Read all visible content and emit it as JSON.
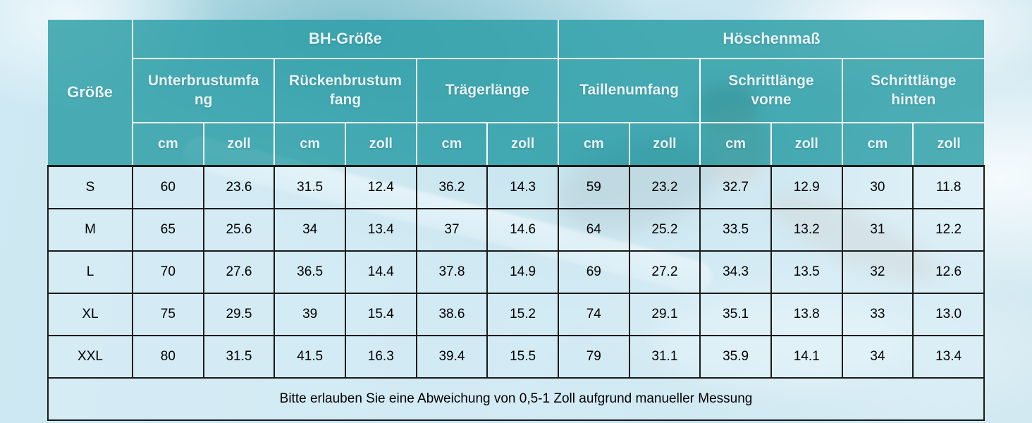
{
  "table": {
    "corner_label": "Größe",
    "groups": [
      {
        "label": "BH-Größe"
      },
      {
        "label": "Höschenmaß"
      }
    ],
    "measurements": [
      "Unterbrustumfa\nng",
      "Rückenbrustum\nfang",
      "Trägerlänge",
      "Taillenumfang",
      "Schrittlänge\nvorne",
      "Schrittlänge\nhinten"
    ],
    "units": {
      "cm": "cm",
      "zoll": "zoll"
    },
    "rows": [
      {
        "size": "S",
        "values": [
          "60",
          "23.6",
          "31.5",
          "12.4",
          "36.2",
          "14.3",
          "59",
          "23.2",
          "32.7",
          "12.9",
          "30",
          "11.8"
        ]
      },
      {
        "size": "M",
        "values": [
          "65",
          "25.6",
          "34",
          "13.4",
          "37",
          "14.6",
          "64",
          "25.2",
          "33.5",
          "13.2",
          "31",
          "12.2"
        ]
      },
      {
        "size": "L",
        "values": [
          "70",
          "27.6",
          "36.5",
          "14.4",
          "37.8",
          "14.9",
          "69",
          "27.2",
          "34.3",
          "13.5",
          "32",
          "12.6"
        ]
      },
      {
        "size": "XL",
        "values": [
          "75",
          "29.5",
          "39",
          "15.4",
          "38.6",
          "15.2",
          "74",
          "29.1",
          "35.1",
          "13.8",
          "33",
          "13.0"
        ]
      },
      {
        "size": "XXL",
        "values": [
          "80",
          "31.5",
          "41.5",
          "16.3",
          "39.4",
          "15.5",
          "79",
          "31.1",
          "35.9",
          "14.1",
          "34",
          "13.4"
        ]
      }
    ],
    "note": "Bitte erlauben Sie eine Abweichung von 0,5-1 Zoll aufgrund manueller Messung"
  },
  "colors": {
    "header_bg": "#2B9DA6",
    "header_text": "#E7F3F5",
    "cell_bg": "#D8EDF6",
    "grid_dark": "#1A1A1A",
    "grid_light": "#FFFFFF",
    "background_water": "#C5E4EF"
  },
  "chart_data": {
    "type": "table",
    "title": "BH-Größe / Höschenmaß Größentabelle",
    "column_groups": [
      {
        "label": "BH-Größe",
        "measurements": [
          "Unterbrustumfang",
          "Rückenbrustumfang",
          "Trägerlänge"
        ]
      },
      {
        "label": "Höschenmaß",
        "measurements": [
          "Taillenumfang",
          "Schrittlänge vorne",
          "Schrittlänge hinten"
        ]
      }
    ],
    "columns": [
      "Größe",
      "Unterbrustumfang cm",
      "Unterbrustumfang zoll",
      "Rückenbrustumfang cm",
      "Rückenbrustumfang zoll",
      "Trägerlänge cm",
      "Trägerlänge zoll",
      "Taillenumfang cm",
      "Taillenumfang zoll",
      "Schrittlänge vorne cm",
      "Schrittlänge vorne zoll",
      "Schrittlänge hinten cm",
      "Schrittlänge hinten zoll"
    ],
    "rows": [
      [
        "S",
        60,
        23.6,
        31.5,
        12.4,
        36.2,
        14.3,
        59,
        23.2,
        32.7,
        12.9,
        30,
        11.8
      ],
      [
        "M",
        65,
        25.6,
        34,
        13.4,
        37,
        14.6,
        64,
        25.2,
        33.5,
        13.2,
        31,
        12.2
      ],
      [
        "L",
        70,
        27.6,
        36.5,
        14.4,
        37.8,
        14.9,
        69,
        27.2,
        34.3,
        13.5,
        32,
        12.6
      ],
      [
        "XL",
        75,
        29.5,
        39,
        15.4,
        38.6,
        15.2,
        74,
        29.1,
        35.1,
        13.8,
        33,
        13.0
      ],
      [
        "XXL",
        80,
        31.5,
        41.5,
        16.3,
        39.4,
        15.5,
        79,
        31.1,
        35.9,
        14.1,
        34,
        13.4
      ]
    ],
    "footnote": "Bitte erlauben Sie eine Abweichung von 0,5-1 Zoll aufgrund manueller Messung"
  }
}
